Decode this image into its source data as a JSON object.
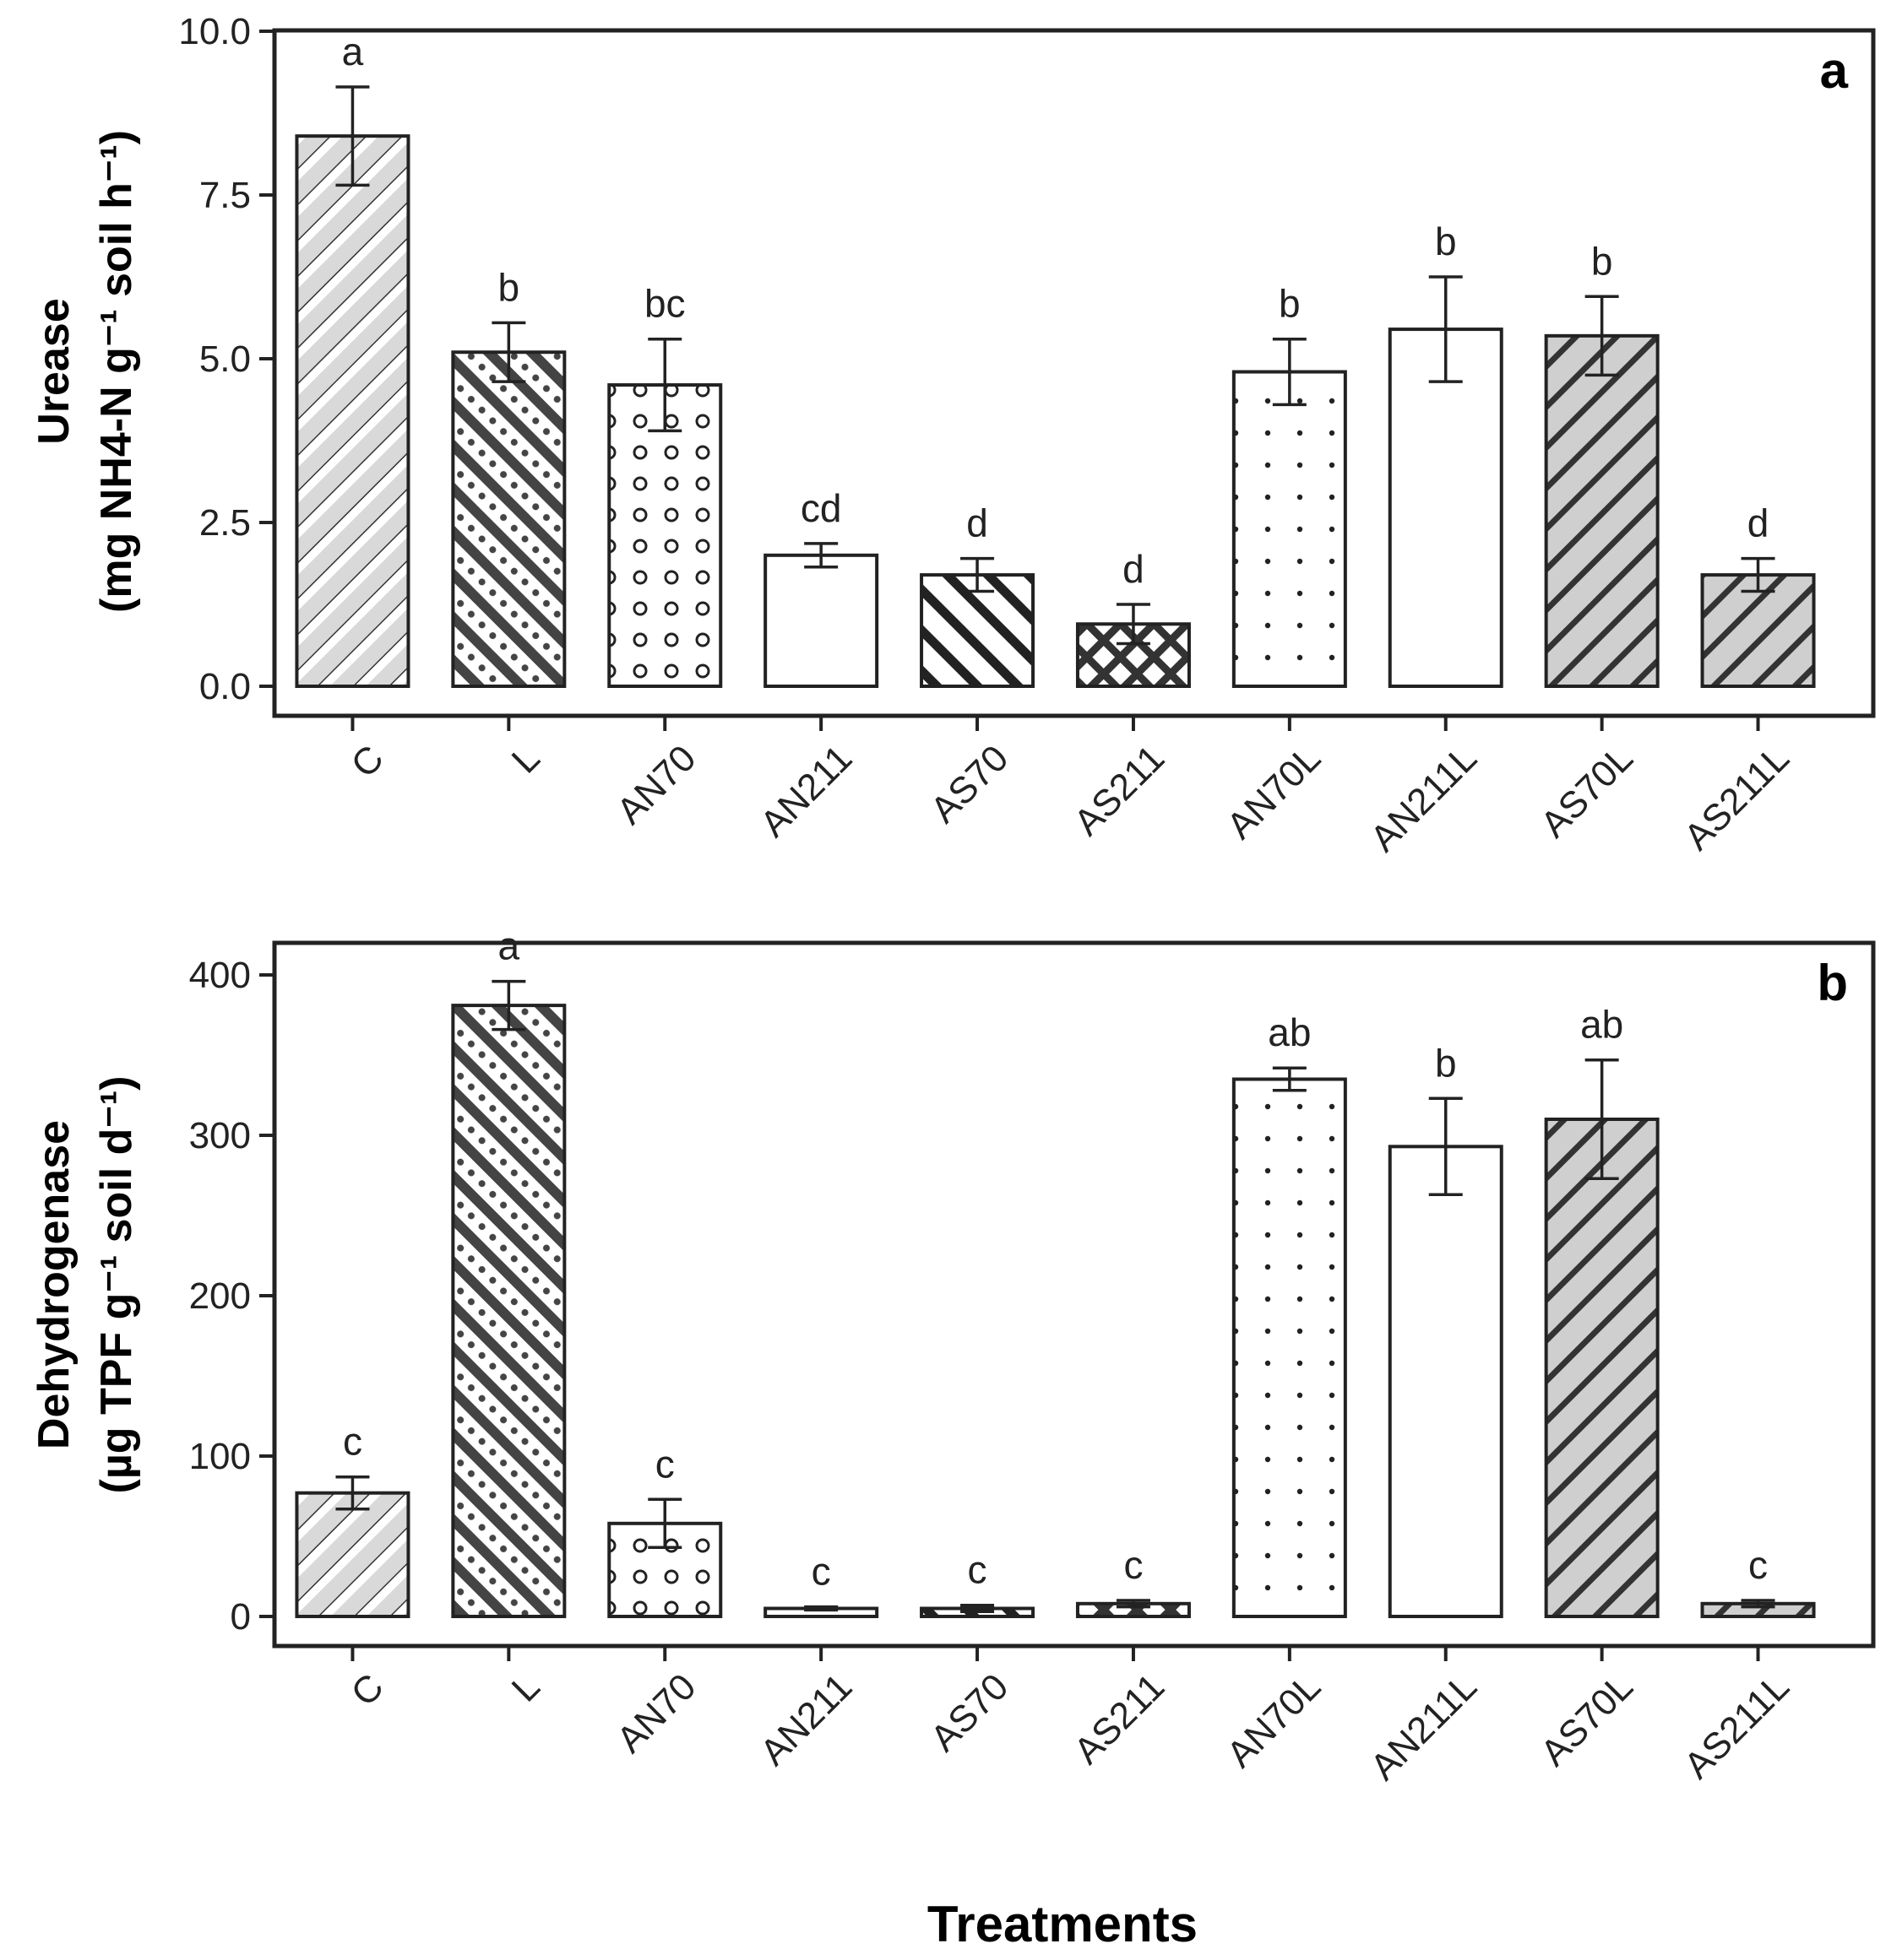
{
  "chart_data": [
    {
      "type": "bar",
      "panel_label": "a",
      "ylabel_line1": "Urease",
      "ylabel_line2": "(mg NH4-N g⁻¹ soil h⁻¹)",
      "ylim": [
        0,
        10
      ],
      "yticks": [
        "0.0",
        "2.5",
        "5.0",
        "7.5",
        "10.0"
      ],
      "ytick_values": [
        0,
        2.5,
        5,
        7.5,
        10
      ],
      "categories": [
        "C",
        "L",
        "AN70",
        "AN211",
        "AS70",
        "AS211",
        "AN70L",
        "AN211L",
        "AS70L",
        "AS211L"
      ],
      "values": [
        8.4,
        5.1,
        4.6,
        2.0,
        1.7,
        0.95,
        4.8,
        5.45,
        5.35,
        1.7
      ],
      "errors": [
        0.75,
        0.45,
        0.7,
        0.18,
        0.25,
        0.3,
        0.5,
        0.8,
        0.6,
        0.25
      ],
      "letters": [
        "a",
        "b",
        "bc",
        "cd",
        "d",
        "d",
        "b",
        "b",
        "b",
        "d"
      ],
      "patterns": [
        "diag-light-gray",
        "diag-dots-dark",
        "open-circles",
        "plain-white",
        "diag-bold-white",
        "crosshatch-dark",
        "small-dots",
        "plain-white",
        "diag-bold-gray",
        "diag-bold-gray"
      ],
      "grid": false,
      "legend": "none"
    },
    {
      "type": "bar",
      "panel_label": "b",
      "ylabel_line1": "Dehydrogenase",
      "ylabel_line2": "(µg TPF g⁻¹ soil d⁻¹)",
      "ylim": [
        0,
        430
      ],
      "yticks": [
        "0",
        "100",
        "200",
        "300",
        "400"
      ],
      "ytick_values": [
        0,
        100,
        200,
        300,
        400
      ],
      "categories": [
        "C",
        "L",
        "AN70",
        "AN211",
        "AS70",
        "AS211",
        "AN70L",
        "AN211L",
        "AS70L",
        "AS211L"
      ],
      "values": [
        77,
        381,
        58,
        5,
        5,
        8,
        335,
        293,
        310,
        8
      ],
      "errors": [
        10,
        15,
        15,
        1,
        2,
        2,
        7,
        30,
        37,
        2
      ],
      "letters": [
        "c",
        "a",
        "c",
        "c",
        "c",
        "c",
        "ab",
        "b",
        "ab",
        "c"
      ],
      "patterns": [
        "diag-light-gray",
        "diag-dots-dark",
        "open-circles",
        "plain-white",
        "diag-bold-white",
        "crosshatch-dark",
        "small-dots",
        "plain-white",
        "diag-bold-gray",
        "diag-bold-gray"
      ],
      "grid": false,
      "legend": "none"
    }
  ],
  "xlabel": "Treatments"
}
